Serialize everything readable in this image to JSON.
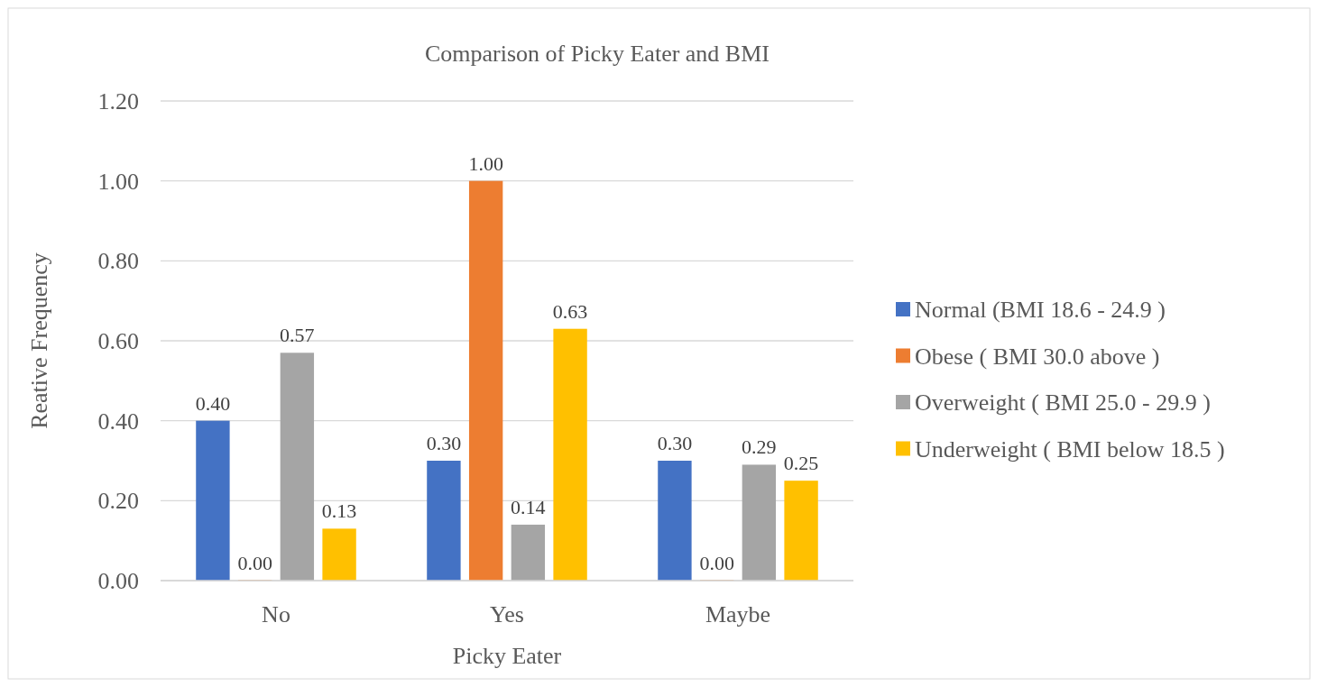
{
  "chart_data": {
    "type": "bar",
    "title": "Comparison of Picky Eater and BMI",
    "xlabel": "Picky Eater",
    "ylabel": "Reative Frequency",
    "categories": [
      "No",
      "Yes",
      "Maybe"
    ],
    "series": [
      {
        "name": "Normal (BMI 18.6 - 24.9 )",
        "color": "#4472c4",
        "values": [
          0.4,
          0.3,
          0.3
        ],
        "value_labels": [
          "0.40",
          "0.30",
          "0.30"
        ]
      },
      {
        "name": "Obese ( BMI 30.0 above )",
        "color": "#ed7d31",
        "values": [
          0.0,
          1.0,
          0.0
        ],
        "value_labels": [
          "0.00",
          "1.00",
          "0.00"
        ]
      },
      {
        "name": "Overweight ( BMI 25.0 - 29.9 )",
        "color": "#a5a5a5",
        "values": [
          0.57,
          0.14,
          0.29
        ],
        "value_labels": [
          "0.57",
          "0.14",
          "0.29"
        ]
      },
      {
        "name": "Underweight ( BMI below 18.5 )",
        "color": "#ffc000",
        "values": [
          0.13,
          0.63,
          0.25
        ],
        "value_labels": [
          "0.13",
          "0.63",
          "0.25"
        ]
      }
    ],
    "ylim": [
      0,
      1.2
    ],
    "yticks": [
      {
        "value": 0,
        "label": "0.00"
      },
      {
        "value": 0.2,
        "label": "0.20"
      },
      {
        "value": 0.4,
        "label": "0.40"
      },
      {
        "value": 0.6,
        "label": "0.60"
      },
      {
        "value": 0.8,
        "label": "0.80"
      },
      {
        "value": 1.0,
        "label": "1.00"
      },
      {
        "value": 1.2,
        "label": "1.20"
      }
    ],
    "grid": "y",
    "legend": "right"
  }
}
